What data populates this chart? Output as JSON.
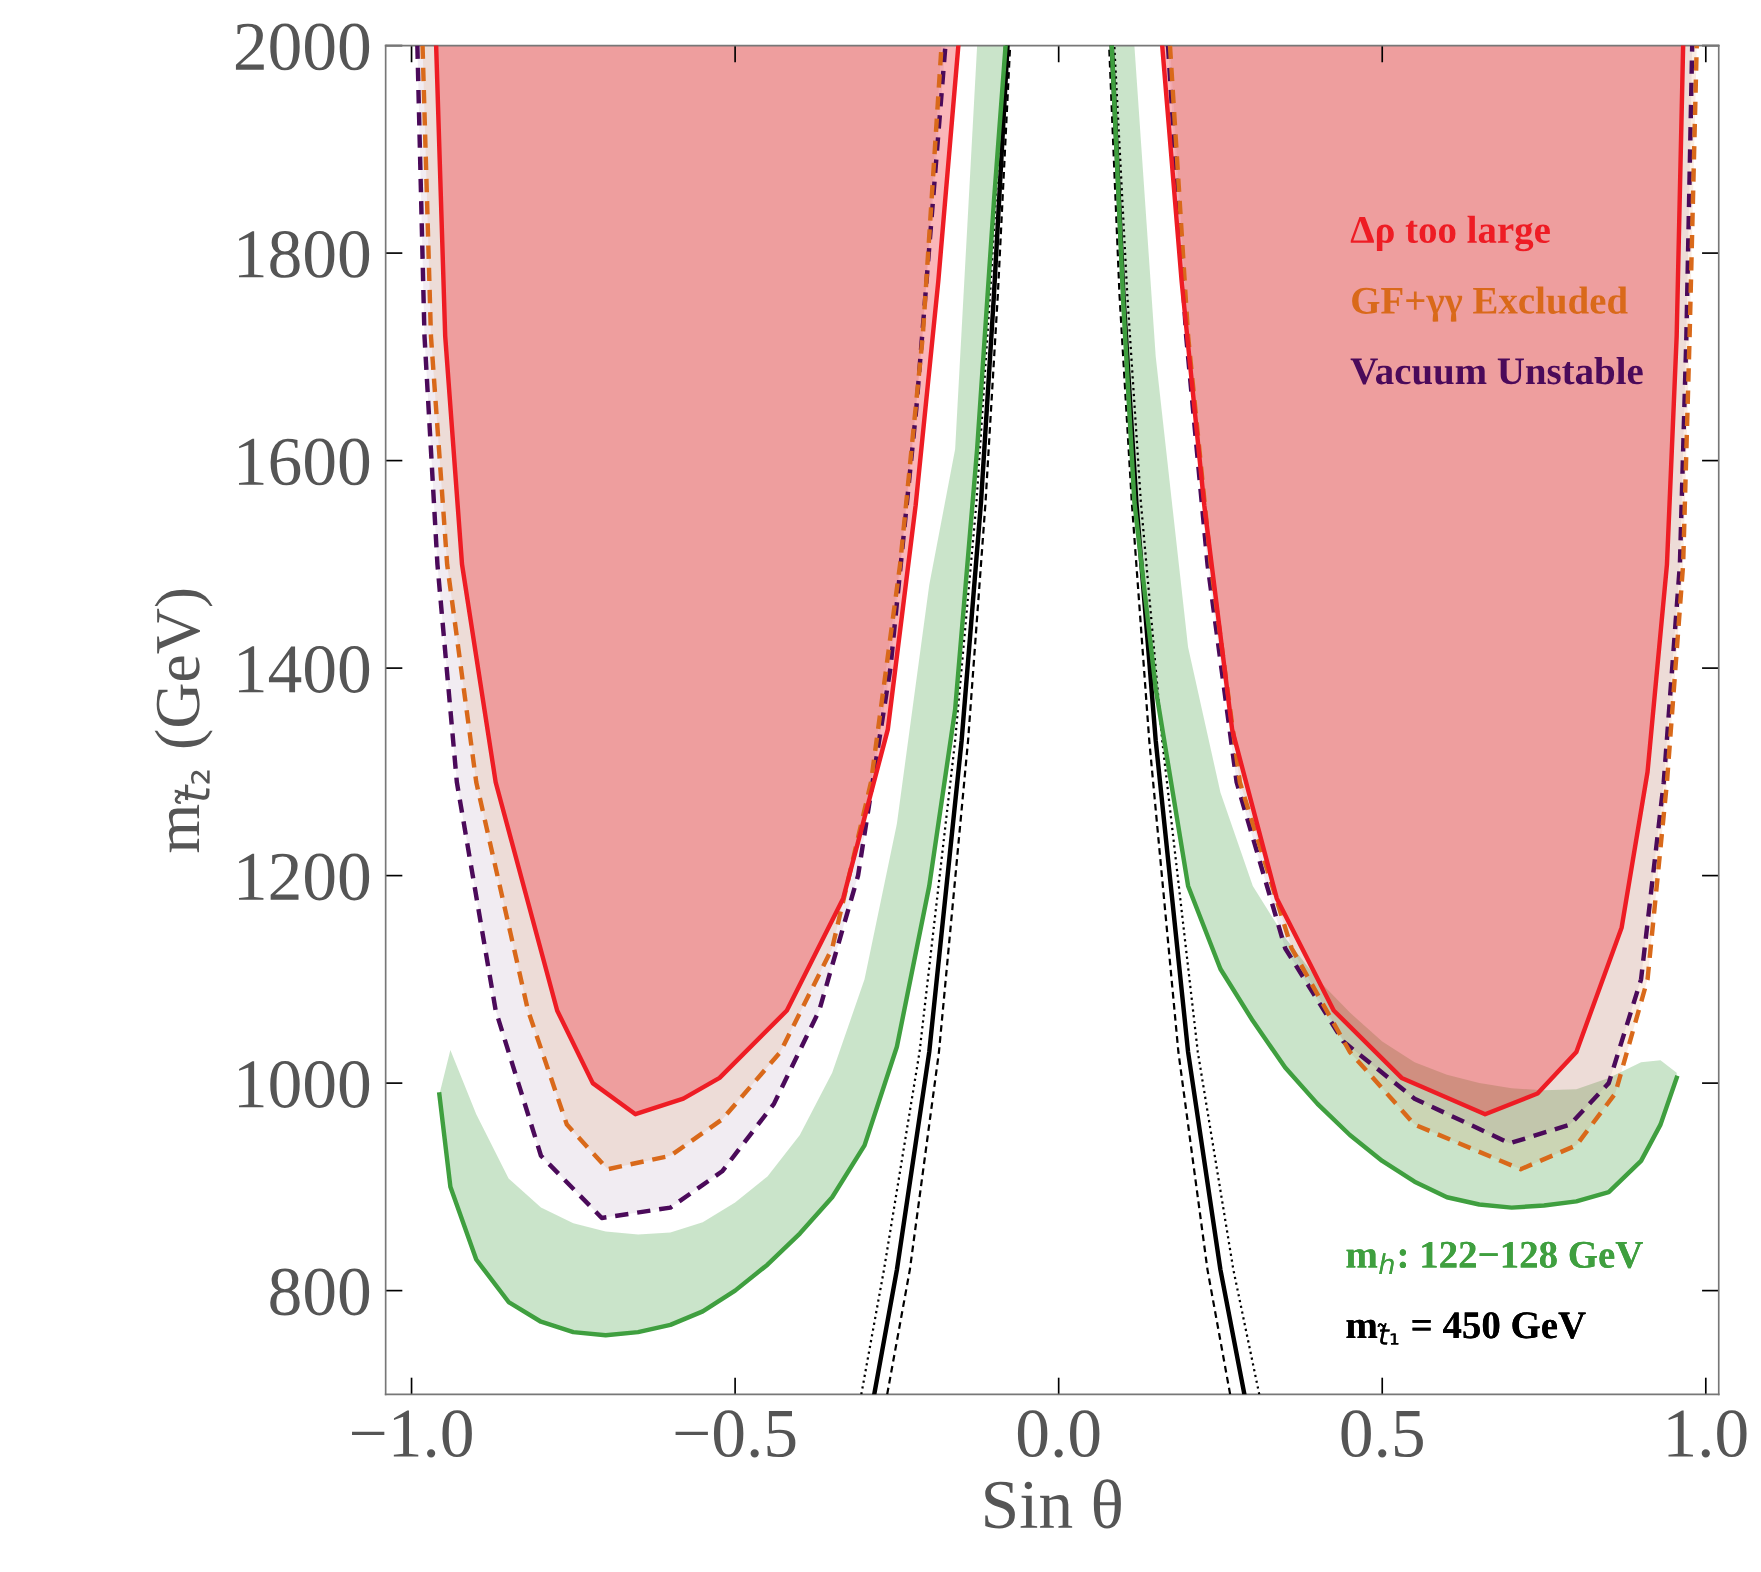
{
  "chart_data": {
    "type": "line",
    "xlabel": "Sin θ",
    "ylabel": "m$_{t̃₂}$ (GeV)",
    "xlim": [
      -1.04,
      1.02
    ],
    "ylim": [
      700,
      2000
    ],
    "xticks": [
      {
        "value": -1.0,
        "label": "−1.0"
      },
      {
        "value": -0.5,
        "label": "−0.5"
      },
      {
        "value": 0.0,
        "label": "0.0"
      },
      {
        "value": 0.5,
        "label": "0.5"
      },
      {
        "value": 1.0,
        "label": "1.0"
      }
    ],
    "yticks": [
      800,
      1000,
      1200,
      1400,
      1600,
      1800,
      2000
    ],
    "legend": "right",
    "series": [
      {
        "name": "Δρ too large",
        "color": "#ee1c24",
        "line_style": "solid",
        "x": [
          -0.962,
          -0.948,
          -0.922,
          -0.87,
          -0.775,
          -0.72,
          -0.654,
          -0.58,
          -0.524,
          -0.42,
          -0.333,
          -0.264,
          -0.221,
          -0.186,
          -0.155
        ],
        "values": [
          2000,
          1720,
          1500,
          1290,
          1070,
          1000,
          970,
          985,
          1005,
          1070,
          1178,
          1341,
          1557,
          1773,
          2000
        ],
        "lower": [
          2000,
          1720,
          1500,
          1290,
          1070,
          1000,
          970,
          985,
          1005,
          1070,
          1178,
          1341,
          1557,
          1773,
          2000
        ],
        "upper": [
          2000,
          2000,
          2000,
          2000,
          2000,
          2000,
          2000,
          2000,
          2000,
          2000,
          2000,
          2000,
          2000,
          2000,
          2000
        ]
      },
      {
        "color": "#ee1c24",
        "line_style": "solid",
        "x": [
          0.16,
          0.19,
          0.225,
          0.268,
          0.337,
          0.425,
          0.53,
          0.659,
          0.74,
          0.8,
          0.87,
          0.91,
          0.94,
          0.955,
          0.965
        ],
        "values": [
          2000,
          1773,
          1557,
          1341,
          1178,
          1070,
          1005,
          970,
          990,
          1030,
          1150,
          1300,
          1500,
          1720,
          2000
        ],
        "lower": [
          2000,
          1773,
          1557,
          1341,
          1178,
          1070,
          1005,
          970,
          990,
          1030,
          1150,
          1300,
          1500,
          1720,
          2000
        ],
        "upper": [
          2000,
          2000,
          2000,
          2000,
          2000,
          2000,
          2000,
          2000,
          2000,
          2000,
          2000,
          2000,
          2000,
          2000,
          2000
        ]
      },
      {
        "name": "GF+γγ Excluded",
        "color": "#d9691a",
        "line_style": "dashed",
        "x": [
          -0.983,
          -0.97,
          -0.945,
          -0.9,
          -0.82,
          -0.76,
          -0.697,
          -0.6,
          -0.52,
          -0.43,
          -0.35,
          -0.29,
          -0.245,
          -0.21,
          -0.181
        ],
        "values": [
          2000,
          1720,
          1500,
          1290,
          1070,
          960,
          917,
          930,
          965,
          1030,
          1130,
          1290,
          1500,
          1720,
          2000
        ],
        "lower": [
          2000,
          1720,
          1500,
          1290,
          1070,
          960,
          917,
          930,
          965,
          1030,
          1130,
          1290,
          1500,
          1720,
          2000
        ],
        "upper": [
          2000,
          2000,
          2000,
          2000,
          2000,
          2000,
          2000,
          2000,
          2000,
          2000,
          2000,
          2000,
          2000,
          2000,
          2000
        ]
      },
      {
        "color": "#d9691a",
        "line_style": "dashed",
        "x": [
          0.172,
          0.2,
          0.235,
          0.28,
          0.36,
          0.45,
          0.55,
          0.714,
          0.8,
          0.86,
          0.91,
          0.94,
          0.965,
          0.975,
          0.986
        ],
        "values": [
          2000,
          1720,
          1500,
          1290,
          1130,
          1030,
          960,
          917,
          940,
          990,
          1100,
          1290,
          1500,
          1720,
          2000
        ],
        "lower": [
          2000,
          1720,
          1500,
          1290,
          1130,
          1030,
          960,
          917,
          940,
          990,
          1100,
          1290,
          1500,
          1720,
          2000
        ],
        "upper": [
          2000,
          2000,
          2000,
          2000,
          2000,
          2000,
          2000,
          2000,
          2000,
          2000,
          2000,
          2000,
          2000,
          2000,
          2000
        ]
      },
      {
        "name": "Vacuum Unstable",
        "color": "#4b0a5a",
        "line_style": "dashed",
        "x": [
          -0.991,
          -0.98,
          -0.96,
          -0.93,
          -0.87,
          -0.8,
          -0.706,
          -0.6,
          -0.52,
          -0.44,
          -0.37,
          -0.31,
          -0.26,
          -0.22,
          -0.175
        ],
        "values": [
          2000,
          1720,
          1500,
          1290,
          1070,
          930,
          870,
          880,
          915,
          980,
          1070,
          1200,
          1400,
          1650,
          2000
        ],
        "lower": [
          2000,
          1720,
          1500,
          1290,
          1070,
          930,
          870,
          880,
          915,
          980,
          1070,
          1200,
          1400,
          1650,
          2000
        ],
        "upper": [
          2000,
          2000,
          2000,
          2000,
          2000,
          2000,
          2000,
          2000,
          2000,
          2000,
          2000,
          2000,
          2000,
          2000,
          2000
        ]
      },
      {
        "color": "#4b0a5a",
        "line_style": "dashed",
        "x": [
          0.169,
          0.197,
          0.23,
          0.275,
          0.35,
          0.44,
          0.55,
          0.697,
          0.79,
          0.85,
          0.9,
          0.935,
          0.96,
          0.97,
          0.979
        ],
        "values": [
          2000,
          1720,
          1500,
          1290,
          1130,
          1040,
          985,
          942,
          960,
          1000,
          1100,
          1290,
          1500,
          1720,
          2000
        ],
        "lower": [
          2000,
          1720,
          1500,
          1290,
          1130,
          1040,
          985,
          942,
          960,
          1000,
          1100,
          1290,
          1500,
          1720,
          2000
        ],
        "upper": [
          2000,
          2000,
          2000,
          2000,
          2000,
          2000,
          2000,
          2000,
          2000,
          2000,
          2000,
          2000,
          2000,
          2000,
          2000
        ]
      },
      {
        "name": "m$_{h}$: 122−128 GeV",
        "color": "#3f9f3f",
        "line_style": "solid",
        "x": [
          -0.957,
          -0.94,
          -0.9,
          -0.85,
          -0.8,
          -0.75,
          -0.7,
          -0.65,
          -0.6,
          -0.55,
          -0.5,
          -0.45,
          -0.4,
          -0.35,
          -0.3,
          -0.25,
          -0.2,
          -0.16,
          -0.126,
          -0.1,
          -0.082
        ],
        "values": [
          989,
          900,
          830,
          789,
          770,
          760,
          757,
          760,
          767,
          780,
          800,
          825,
          855,
          890,
          940,
          1035,
          1190,
          1360,
          1611,
          1850,
          2000
        ],
        "lower": [
          989,
          900,
          830,
          789,
          770,
          760,
          757,
          760,
          767,
          780,
          800,
          825,
          855,
          890,
          940,
          1035,
          1190,
          1360,
          1611,
          1850,
          2000
        ],
        "upper": [
          989,
          1032,
          970,
          908,
          880,
          865,
          857,
          854,
          856,
          866,
          885,
          910,
          950,
          1010,
          1100,
          1250,
          1480,
          1611,
          2000,
          2000,
          2000
        ]
      },
      {
        "color": "#3f9f3f",
        "line_style": "solid",
        "x": [
          0.082,
          0.1,
          0.117,
          0.15,
          0.2,
          0.25,
          0.3,
          0.35,
          0.4,
          0.45,
          0.5,
          0.55,
          0.6,
          0.65,
          0.7,
          0.75,
          0.8,
          0.85,
          0.9,
          0.93,
          0.955
        ],
        "values": [
          2000,
          1750,
          1560,
          1380,
          1190,
          1110,
          1060,
          1015,
          980,
          950,
          925,
          905,
          890,
          883,
          880,
          882,
          886,
          895,
          925,
          960,
          1005
        ],
        "lower": [
          2000,
          1750,
          1560,
          1380,
          1190,
          1110,
          1060,
          1015,
          980,
          950,
          925,
          905,
          890,
          883,
          880,
          882,
          886,
          895,
          925,
          960,
          1005
        ],
        "upper": [
          2000,
          2000,
          2000,
          1700,
          1420,
          1280,
          1190,
          1140,
          1100,
          1068,
          1040,
          1020,
          1008,
          1000,
          995,
          993,
          994,
          1005,
          1020,
          1022,
          1010
        ]
      },
      {
        "name": "m$_{t̃₁}$ = 450 GeV",
        "color": "#000000",
        "line_style": "solid",
        "x": [
          -0.285,
          -0.25,
          -0.2,
          -0.15,
          -0.12,
          -0.1,
          -0.079
        ],
        "values": [
          700,
          820,
          1030,
          1330,
          1560,
          1760,
          2000
        ]
      },
      {
        "color": "#000000",
        "line_style": "dashed",
        "x": [
          -0.265,
          -0.23,
          -0.185,
          -0.14,
          -0.113,
          -0.094,
          -0.075
        ],
        "values": [
          700,
          820,
          1030,
          1330,
          1560,
          1760,
          2000
        ]
      },
      {
        "color": "#000000",
        "line_style": "dotted",
        "x": [
          -0.305,
          -0.27,
          -0.215,
          -0.16,
          -0.127,
          -0.106,
          -0.083
        ],
        "values": [
          700,
          820,
          1030,
          1330,
          1560,
          1760,
          2000
        ]
      },
      {
        "color": "#000000",
        "line_style": "solid",
        "x": [
          0.287,
          0.25,
          0.2,
          0.15,
          0.12,
          0.1,
          0.082
        ],
        "values": [
          700,
          820,
          1030,
          1330,
          1560,
          1760,
          2000
        ]
      },
      {
        "color": "#000000",
        "line_style": "dashed",
        "x": [
          0.265,
          0.23,
          0.185,
          0.14,
          0.113,
          0.094,
          0.078
        ],
        "values": [
          700,
          820,
          1030,
          1330,
          1560,
          1760,
          2000
        ]
      },
      {
        "color": "#000000",
        "line_style": "dotted",
        "x": [
          0.31,
          0.27,
          0.215,
          0.16,
          0.127,
          0.106,
          0.086
        ],
        "values": [
          700,
          820,
          1030,
          1330,
          1560,
          1760,
          2000
        ]
      }
    ]
  }
}
